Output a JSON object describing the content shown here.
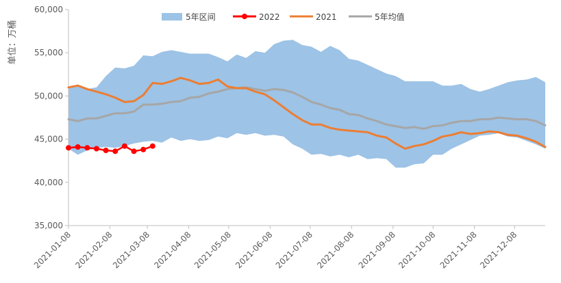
{
  "chart_data": {
    "type": "line",
    "ylabel": "单位：万桶",
    "ylim": [
      35000,
      60000
    ],
    "ytick_labels": [
      "35,000",
      "40,000",
      "45,000",
      "50,000",
      "55,000",
      "60,000"
    ],
    "yticks": [
      35000,
      40000,
      45000,
      50000,
      55000,
      60000
    ],
    "x_start": "2021-01-08",
    "x_end": "2021-12-31",
    "xticks": [
      "2021-01-08",
      "2021-02-08",
      "2021-03-08",
      "2021-04-08",
      "2021-05-08",
      "2021-06-08",
      "2021-07-08",
      "2021-08-08",
      "2021-09-08",
      "2021-10-08",
      "2021-11-08",
      "2021-12-08"
    ],
    "legend": [
      "5年区间",
      "2022",
      "2021",
      "5年均值"
    ],
    "legend_position": "top",
    "colors": {
      "band": "#9dc3e6",
      "y2022": "#ff0000",
      "y2021": "#ed7d31",
      "avg": "#a6a6a6",
      "axis": "#bfbfbf"
    },
    "band": {
      "dates": [
        "2021-01-08",
        "2021-01-15",
        "2021-01-22",
        "2021-01-29",
        "2021-02-05",
        "2021-02-12",
        "2021-02-19",
        "2021-02-26",
        "2021-03-05",
        "2021-03-12",
        "2021-03-19",
        "2021-03-26",
        "2021-04-02",
        "2021-04-09",
        "2021-04-16",
        "2021-04-23",
        "2021-04-30",
        "2021-05-07",
        "2021-05-14",
        "2021-05-21",
        "2021-05-28",
        "2021-06-04",
        "2021-06-11",
        "2021-06-18",
        "2021-06-25",
        "2021-07-02",
        "2021-07-09",
        "2021-07-16",
        "2021-07-23",
        "2021-07-30",
        "2021-08-06",
        "2021-08-13",
        "2021-08-20",
        "2021-08-27",
        "2021-09-03",
        "2021-09-10",
        "2021-09-17",
        "2021-09-24",
        "2021-10-01",
        "2021-10-08",
        "2021-10-15",
        "2021-10-22",
        "2021-10-29",
        "2021-11-05",
        "2021-11-12",
        "2021-11-19",
        "2021-11-26",
        "2021-12-03",
        "2021-12-10",
        "2021-12-17",
        "2021-12-24",
        "2021-12-31"
      ],
      "upper": [
        51000,
        51200,
        50800,
        51000,
        52300,
        53300,
        53200,
        53500,
        54700,
        54600,
        55100,
        55300,
        55100,
        54900,
        54900,
        54900,
        54500,
        54000,
        54800,
        54400,
        55200,
        55000,
        56000,
        56400,
        56500,
        55900,
        55700,
        55100,
        55800,
        55300,
        54300,
        54100,
        53600,
        53100,
        52600,
        52300,
        51700,
        51700,
        51700,
        51700,
        51200,
        51200,
        51400,
        50800,
        50500,
        50800,
        51200,
        51600,
        51800,
        51900,
        52200,
        51600
      ],
      "lower": [
        43900,
        43200,
        43700,
        44000,
        44100,
        44000,
        44200,
        44500,
        44700,
        44800,
        44600,
        45200,
        44800,
        45000,
        44800,
        44900,
        45300,
        45100,
        45700,
        45500,
        45700,
        45400,
        45500,
        45300,
        44400,
        43900,
        43200,
        43300,
        43000,
        43200,
        42900,
        43200,
        42700,
        42800,
        42700,
        41700,
        41700,
        42100,
        42200,
        43200,
        43200,
        43900,
        44400,
        44900,
        45400,
        45500,
        45700,
        45300,
        45200,
        44800,
        44400,
        43900
      ]
    },
    "series": [
      {
        "name": "2022",
        "dates": [
          "2021-01-08",
          "2021-01-15",
          "2021-01-22",
          "2021-01-29",
          "2021-02-05",
          "2021-02-12",
          "2021-02-19",
          "2021-02-26",
          "2021-03-05",
          "2021-03-12"
        ],
        "values": [
          44000,
          44100,
          44000,
          43900,
          43700,
          43600,
          44200,
          43600,
          43800,
          44200
        ]
      },
      {
        "name": "2021",
        "dates": [
          "2021-01-08",
          "2021-01-15",
          "2021-01-22",
          "2021-01-29",
          "2021-02-05",
          "2021-02-12",
          "2021-02-19",
          "2021-02-26",
          "2021-03-05",
          "2021-03-12",
          "2021-03-19",
          "2021-03-26",
          "2021-04-02",
          "2021-04-09",
          "2021-04-16",
          "2021-04-23",
          "2021-04-30",
          "2021-05-07",
          "2021-05-14",
          "2021-05-21",
          "2021-05-28",
          "2021-06-04",
          "2021-06-11",
          "2021-06-18",
          "2021-06-25",
          "2021-07-02",
          "2021-07-09",
          "2021-07-16",
          "2021-07-23",
          "2021-07-30",
          "2021-08-06",
          "2021-08-13",
          "2021-08-20",
          "2021-08-27",
          "2021-09-03",
          "2021-09-10",
          "2021-09-17",
          "2021-09-24",
          "2021-10-01",
          "2021-10-08",
          "2021-10-15",
          "2021-10-22",
          "2021-10-29",
          "2021-11-05",
          "2021-11-12",
          "2021-11-19",
          "2021-11-26",
          "2021-12-03",
          "2021-12-10",
          "2021-12-17",
          "2021-12-24",
          "2021-12-31"
        ],
        "values": [
          51000,
          51200,
          50800,
          50500,
          50200,
          49800,
          49300,
          49400,
          50100,
          51500,
          51400,
          51700,
          52100,
          51800,
          51400,
          51500,
          51900,
          51100,
          50900,
          50900,
          50500,
          50200,
          49500,
          48700,
          47900,
          47200,
          46700,
          46700,
          46300,
          46100,
          46000,
          45900,
          45800,
          45400,
          45200,
          44500,
          43900,
          44200,
          44400,
          44800,
          45300,
          45500,
          45800,
          45600,
          45700,
          45900,
          45800,
          45500,
          45400,
          45100,
          44700,
          44100
        ]
      },
      {
        "name": "5年均值",
        "dates": [
          "2021-01-08",
          "2021-01-15",
          "2021-01-22",
          "2021-01-29",
          "2021-02-05",
          "2021-02-12",
          "2021-02-19",
          "2021-02-26",
          "2021-03-05",
          "2021-03-12",
          "2021-03-19",
          "2021-03-26",
          "2021-04-02",
          "2021-04-09",
          "2021-04-16",
          "2021-04-23",
          "2021-04-30",
          "2021-05-07",
          "2021-05-14",
          "2021-05-21",
          "2021-05-28",
          "2021-06-04",
          "2021-06-11",
          "2021-06-18",
          "2021-06-25",
          "2021-07-02",
          "2021-07-09",
          "2021-07-16",
          "2021-07-23",
          "2021-07-30",
          "2021-08-06",
          "2021-08-13",
          "2021-08-20",
          "2021-08-27",
          "2021-09-03",
          "2021-09-10",
          "2021-09-17",
          "2021-09-24",
          "2021-10-01",
          "2021-10-08",
          "2021-10-15",
          "2021-10-22",
          "2021-10-29",
          "2021-11-05",
          "2021-11-12",
          "2021-11-19",
          "2021-11-26",
          "2021-12-03",
          "2021-12-10",
          "2021-12-17",
          "2021-12-24",
          "2021-12-31"
        ],
        "values": [
          47300,
          47100,
          47400,
          47400,
          47700,
          48000,
          48000,
          48200,
          49000,
          49000,
          49100,
          49300,
          49400,
          49800,
          49900,
          50300,
          50500,
          50800,
          50900,
          51000,
          50800,
          50600,
          50800,
          50700,
          50400,
          49900,
          49300,
          49000,
          48600,
          48400,
          47900,
          47800,
          47400,
          47100,
          46700,
          46500,
          46300,
          46400,
          46200,
          46500,
          46600,
          46900,
          47100,
          47100,
          47300,
          47300,
          47500,
          47400,
          47300,
          47300,
          47100,
          46600
        ]
      }
    ]
  }
}
